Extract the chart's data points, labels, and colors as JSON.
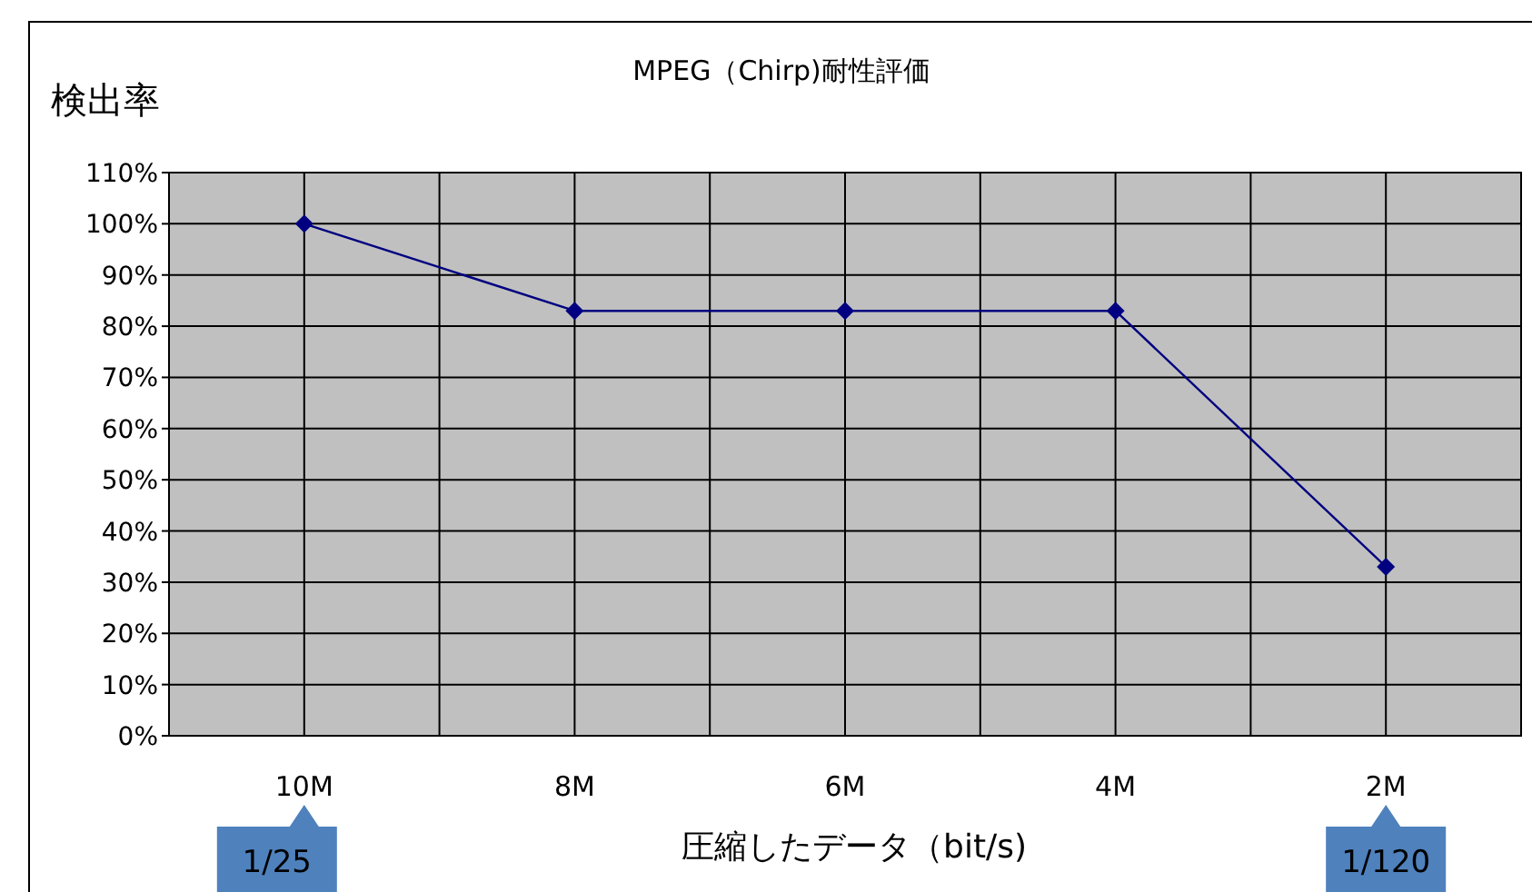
{
  "chart_data": {
    "type": "line",
    "title": "MPEG（Chirp)耐性評価",
    "ylabel": "検出率",
    "xlabel": "圧縮したデータ（bit/s)",
    "categories": [
      "10M",
      "8M",
      "6M",
      "4M",
      "2M"
    ],
    "series": [
      {
        "color": "#000080",
        "values": [
          100,
          83,
          83,
          83,
          33
        ]
      }
    ],
    "ylim": [
      0,
      110
    ],
    "yticks": [
      {
        "value": 0,
        "label": "0%"
      },
      {
        "value": 10,
        "label": "10%"
      },
      {
        "value": 20,
        "label": "20%"
      },
      {
        "value": 30,
        "label": "30%"
      },
      {
        "value": 40,
        "label": "40%"
      },
      {
        "value": 50,
        "label": "50%"
      },
      {
        "value": 60,
        "label": "60%"
      },
      {
        "value": 70,
        "label": "70%"
      },
      {
        "value": 80,
        "label": "80%"
      },
      {
        "value": 90,
        "label": "90%"
      },
      {
        "value": 100,
        "label": "100%"
      },
      {
        "value": 110,
        "label": "110%"
      }
    ],
    "grid": true,
    "marker": "diamond",
    "line_style": "solid",
    "annotations": [
      "1/25",
      "1/120"
    ]
  }
}
